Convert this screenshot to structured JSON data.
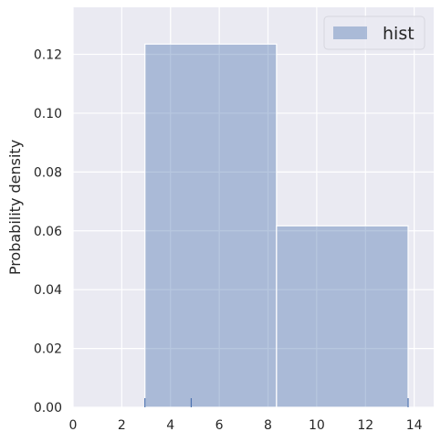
{
  "chart_data": {
    "type": "bar",
    "subtype": "histogram",
    "title": "",
    "xlabel": "",
    "ylabel": "Probability density",
    "xlim": [
      0,
      14.8
    ],
    "ylim": [
      0,
      0.136
    ],
    "xticks": [
      0,
      2,
      4,
      6,
      8,
      10,
      12,
      14
    ],
    "yticks": [
      0.0,
      0.02,
      0.04,
      0.06,
      0.08,
      0.1,
      0.12
    ],
    "ytick_labels": [
      "0.00",
      "0.02",
      "0.04",
      "0.06",
      "0.08",
      "0.10",
      "0.12"
    ],
    "grid": true,
    "legend": {
      "position": "top-right",
      "entries": [
        "hist"
      ]
    },
    "bins": [
      {
        "x0": 2.95,
        "x1": 8.35,
        "density": 0.1235
      },
      {
        "x0": 8.35,
        "x1": 13.75,
        "density": 0.0617
      }
    ],
    "rug": [
      2.95,
      4.85,
      13.75
    ],
    "colors": {
      "background": "#eaeaf2",
      "grid": "#ffffff",
      "bar_fill": "#4c72b0",
      "bar_opacity": 0.4,
      "rug": "#4c72b0",
      "text": "#262626"
    }
  }
}
